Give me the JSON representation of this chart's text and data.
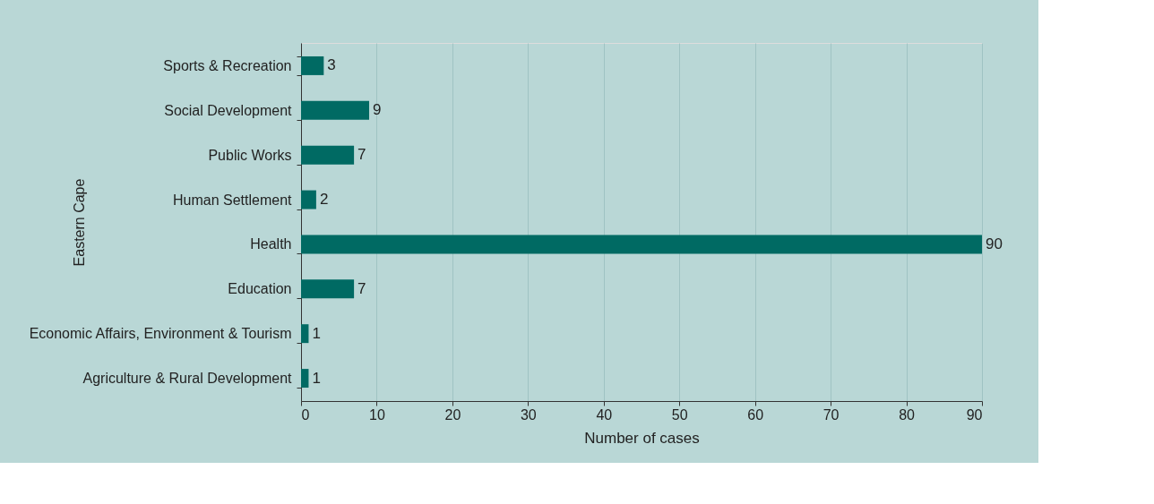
{
  "chart_data": {
    "type": "bar",
    "orientation": "horizontal",
    "xlabel": "Number of cases",
    "ylabel": "Eastern Cape",
    "categories": [
      "Sports & Recreation",
      "Social Development",
      "Public Works",
      "Human Settlement",
      "Health",
      "Education",
      "Economic Affairs, Environment & Tourism",
      "Agriculture & Rural Development"
    ],
    "values": [
      3,
      9,
      7,
      2,
      90,
      7,
      1,
      1
    ],
    "color": "#006a63",
    "xlim": [
      0,
      90
    ],
    "xticks": [
      0,
      10,
      20,
      30,
      40,
      50,
      60,
      70,
      80,
      90
    ],
    "grid": "x",
    "data_labels": true
  }
}
